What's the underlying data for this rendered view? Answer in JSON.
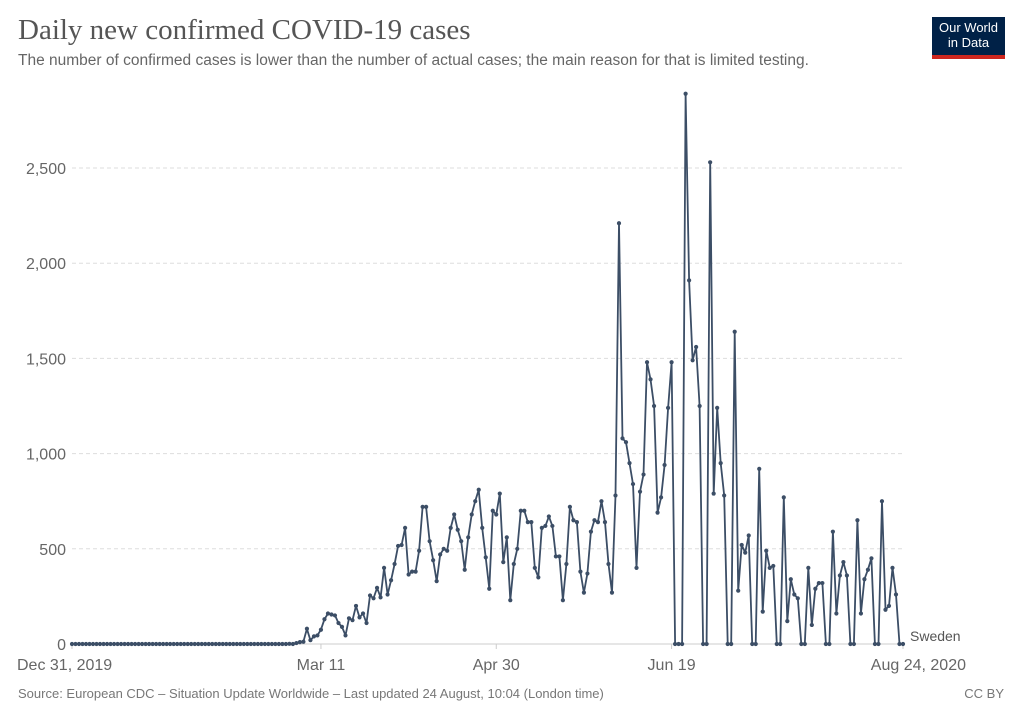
{
  "header": {
    "title": "Daily new confirmed COVID-19 cases",
    "subtitle": "The number of confirmed cases is lower than the number of actual cases; the main reason for that is limited testing.",
    "logo_line1": "Our World",
    "logo_line2": "in Data"
  },
  "footer": {
    "source": "Source: European CDC – Situation Update Worldwide – Last updated 24 August, 10:04 (London time)",
    "license": "CC BY"
  },
  "colors": {
    "series": "#3c4e66",
    "logo_bg": "#002147",
    "logo_accent": "#ce261e",
    "grid": "#dddddd"
  },
  "chart_data": {
    "type": "line",
    "title": "Daily new confirmed COVID-19 cases",
    "xlabel": "",
    "ylabel": "",
    "ylim": [
      0,
      2900
    ],
    "x_range_days": [
      0,
      237
    ],
    "x_start_date": "Dec 31, 2019",
    "xticks": [
      {
        "day": 0,
        "label": "Dec 31, 2019"
      },
      {
        "day": 71,
        "label": "Mar 11"
      },
      {
        "day": 121,
        "label": "Apr 30"
      },
      {
        "day": 171,
        "label": "Jun 19"
      },
      {
        "day": 237,
        "label": "Aug 24, 2020"
      }
    ],
    "yticks": [
      {
        "value": 0,
        "label": "0"
      },
      {
        "value": 500,
        "label": "500"
      },
      {
        "value": 1000,
        "label": "1,000"
      },
      {
        "value": 1500,
        "label": "1,500"
      },
      {
        "value": 2000,
        "label": "2,000"
      },
      {
        "value": 2500,
        "label": "2,500"
      }
    ],
    "grid": true,
    "series": [
      {
        "name": "Sweden",
        "values": [
          0,
          0,
          0,
          0,
          0,
          0,
          0,
          0,
          0,
          0,
          0,
          0,
          0,
          0,
          0,
          0,
          0,
          0,
          0,
          0,
          0,
          0,
          0,
          0,
          0,
          0,
          0,
          0,
          0,
          0,
          0,
          0,
          0,
          0,
          0,
          0,
          0,
          0,
          0,
          0,
          0,
          0,
          0,
          0,
          0,
          0,
          0,
          0,
          0,
          0,
          0,
          0,
          0,
          0,
          0,
          0,
          0,
          0,
          0,
          0,
          0,
          0,
          1,
          0,
          5,
          10,
          12,
          80,
          20,
          40,
          45,
          75,
          130,
          160,
          155,
          150,
          110,
          90,
          45,
          135,
          125,
          200,
          140,
          160,
          110,
          255,
          240,
          295,
          245,
          400,
          260,
          335,
          420,
          515,
          520,
          610,
          365,
          380,
          380,
          490,
          720,
          720,
          540,
          440,
          330,
          470,
          500,
          490,
          610,
          680,
          600,
          540,
          390,
          560,
          680,
          750,
          810,
          610,
          455,
          290,
          700,
          680,
          790,
          430,
          560,
          230,
          420,
          500,
          700,
          700,
          640,
          640,
          400,
          350,
          610,
          620,
          670,
          620,
          460,
          460,
          230,
          420,
          720,
          650,
          640,
          380,
          270,
          370,
          590,
          650,
          640,
          750,
          640,
          420,
          270,
          780,
          2210,
          1080,
          1060,
          950,
          840,
          400,
          800,
          890,
          1480,
          1390,
          1250,
          690,
          770,
          940,
          1240,
          1480,
          0,
          0,
          0,
          2890,
          1910,
          1490,
          1560,
          1250,
          0,
          0,
          2530,
          790,
          1240,
          950,
          780,
          0,
          0,
          1640,
          280,
          520,
          480,
          570,
          0,
          0,
          920,
          170,
          490,
          400,
          410,
          0,
          0,
          770,
          120,
          340,
          260,
          240,
          0,
          0,
          400,
          100,
          290,
          320,
          320,
          0,
          0,
          590,
          160,
          360,
          430,
          360,
          0,
          0,
          650,
          160,
          340,
          390,
          450,
          0,
          0,
          750,
          180,
          200,
          400,
          260,
          0,
          0
        ]
      }
    ],
    "legend": "inline-right-end"
  }
}
